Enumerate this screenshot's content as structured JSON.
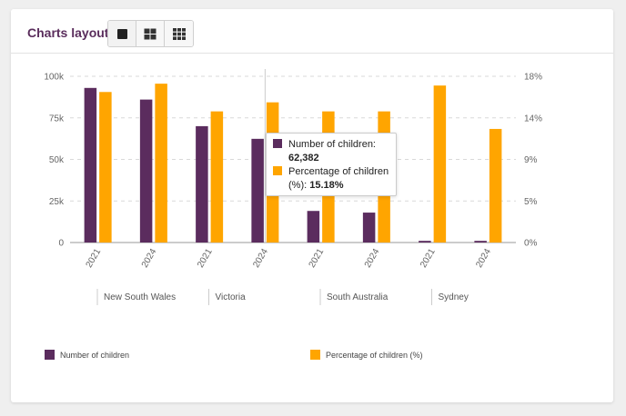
{
  "toolbar": {
    "label": "Charts layout:",
    "buttons": [
      {
        "icon": "single-layout-icon",
        "active": true
      },
      {
        "icon": "grid-2x2-layout-icon",
        "active": false
      },
      {
        "icon": "grid-3x3-layout-icon",
        "active": false
      }
    ]
  },
  "colors": {
    "children": "#5b2c5e",
    "percentage": "#ffa500",
    "accent_text": "#5a2d5c"
  },
  "chart_data": {
    "type": "bar",
    "categories": [
      "2021",
      "2024",
      "2021",
      "2024",
      "2021",
      "2024",
      "2021",
      "2024"
    ],
    "groups": [
      {
        "name": "New South Wales",
        "span": [
          0,
          1
        ]
      },
      {
        "name": "Victoria",
        "span": [
          2,
          3
        ]
      },
      {
        "name": "South Australia",
        "span": [
          4,
          5
        ]
      },
      {
        "name": "Sydney",
        "span": [
          6,
          7
        ]
      }
    ],
    "series": [
      {
        "name": "Number of children",
        "axis": "left",
        "values": [
          93000,
          86000,
          70000,
          62382,
          19000,
          18000,
          1000,
          1000
        ]
      },
      {
        "name": "Percentage of children (%)",
        "axis": "right",
        "values": [
          16.3,
          17.2,
          14.2,
          15.18,
          14.2,
          14.2,
          17.0,
          12.3
        ]
      }
    ],
    "left_axis": {
      "ticks": [
        0,
        25000,
        50000,
        75000,
        100000
      ],
      "tick_labels": [
        "0",
        "25k",
        "50k",
        "75k",
        "100k"
      ],
      "range": [
        0,
        100000
      ]
    },
    "right_axis": {
      "ticks": [
        0,
        4.5,
        9,
        13.5,
        18
      ],
      "tick_labels": [
        "0%",
        "5%",
        "9%",
        "14%",
        "18%"
      ],
      "range": [
        0,
        18
      ]
    },
    "grid": true,
    "legend_position": "bottom"
  },
  "tooltip": {
    "line1": "Number of children:",
    "line2": "62,382",
    "line3": "Percentage of children",
    "line4_prefix": "(%): ",
    "line4_value": "15.18%"
  }
}
